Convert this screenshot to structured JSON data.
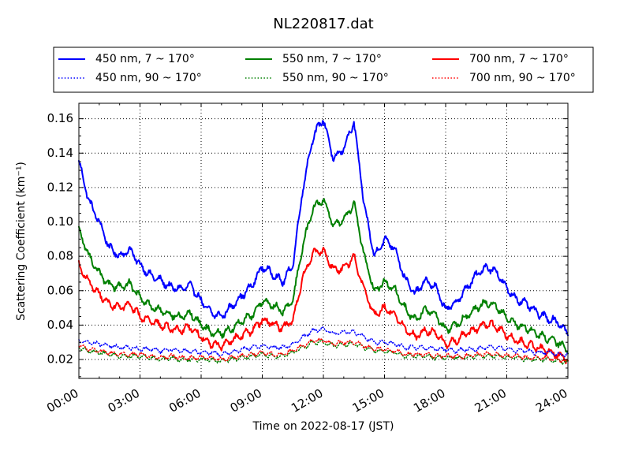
{
  "chart_data": {
    "type": "line",
    "title": "NL220817.dat",
    "xlabel": "Time on 2022-08-17 (JST)",
    "ylabel": "Scattering Coefficient (km⁻¹)",
    "x_unit": "hours",
    "xlim": [
      0,
      24
    ],
    "ylim": [
      0.009,
      0.169
    ],
    "grid": true,
    "legend_position": "top",
    "x_ticks": [
      0,
      3,
      6,
      9,
      12,
      15,
      18,
      21,
      24
    ],
    "x_tick_labels": [
      "00:00",
      "03:00",
      "06:00",
      "09:00",
      "12:00",
      "15:00",
      "18:00",
      "21:00",
      "24:00"
    ],
    "y_ticks": [
      0.02,
      0.04,
      0.06,
      0.08,
      0.1,
      0.12,
      0.14,
      0.16
    ],
    "y_tick_labels": [
      "0.02",
      "0.04",
      "0.06",
      "0.08",
      "0.10",
      "0.12",
      "0.14",
      "0.16"
    ],
    "x": [
      0,
      0.5,
      1,
      1.5,
      2,
      2.5,
      3,
      3.5,
      4,
      4.5,
      5,
      5.5,
      6,
      6.5,
      7,
      7.5,
      8,
      8.5,
      9,
      9.5,
      10,
      10.5,
      11,
      11.5,
      12,
      12.5,
      13,
      13.5,
      14,
      14.5,
      15,
      15.5,
      16,
      16.5,
      17,
      17.5,
      18,
      18.5,
      19,
      19.5,
      20,
      20.5,
      21,
      21.5,
      22,
      22.5,
      23,
      23.5,
      24
    ],
    "series": [
      {
        "name": "450 nm, 7 ~ 170°",
        "color": "#0000ff",
        "style": "solid",
        "values": [
          0.135,
          0.112,
          0.1,
          0.085,
          0.08,
          0.084,
          0.075,
          0.069,
          0.066,
          0.062,
          0.061,
          0.063,
          0.054,
          0.047,
          0.045,
          0.051,
          0.057,
          0.063,
          0.074,
          0.07,
          0.065,
          0.075,
          0.12,
          0.15,
          0.16,
          0.136,
          0.143,
          0.158,
          0.11,
          0.08,
          0.09,
          0.085,
          0.067,
          0.058,
          0.066,
          0.062,
          0.049,
          0.053,
          0.061,
          0.069,
          0.074,
          0.071,
          0.061,
          0.055,
          0.052,
          0.047,
          0.044,
          0.042,
          0.035
        ]
      },
      {
        "name": "550 nm, 7 ~ 170°",
        "color": "#008000",
        "style": "solid",
        "values": [
          0.095,
          0.08,
          0.07,
          0.063,
          0.062,
          0.064,
          0.056,
          0.051,
          0.049,
          0.046,
          0.045,
          0.047,
          0.04,
          0.036,
          0.035,
          0.038,
          0.042,
          0.046,
          0.054,
          0.052,
          0.048,
          0.054,
          0.087,
          0.108,
          0.113,
          0.098,
          0.101,
          0.111,
          0.08,
          0.06,
          0.065,
          0.061,
          0.05,
          0.043,
          0.049,
          0.046,
          0.037,
          0.04,
          0.045,
          0.05,
          0.053,
          0.051,
          0.044,
          0.04,
          0.038,
          0.035,
          0.032,
          0.03,
          0.025
        ]
      },
      {
        "name": "700 nm, 7 ~ 170°",
        "color": "#ff0000",
        "style": "solid",
        "values": [
          0.075,
          0.065,
          0.058,
          0.052,
          0.05,
          0.052,
          0.045,
          0.042,
          0.04,
          0.038,
          0.037,
          0.039,
          0.033,
          0.029,
          0.028,
          0.031,
          0.034,
          0.037,
          0.043,
          0.041,
          0.038,
          0.043,
          0.068,
          0.082,
          0.083,
          0.072,
          0.073,
          0.08,
          0.06,
          0.046,
          0.05,
          0.046,
          0.038,
          0.033,
          0.037,
          0.035,
          0.029,
          0.031,
          0.035,
          0.038,
          0.041,
          0.039,
          0.034,
          0.031,
          0.029,
          0.027,
          0.025,
          0.023,
          0.02
        ]
      },
      {
        "name": "450 nm, 90 ~ 170°",
        "color": "#0000ff",
        "style": "dotted",
        "values": [
          0.031,
          0.03,
          0.029,
          0.028,
          0.027,
          0.027,
          0.026,
          0.026,
          0.025,
          0.026,
          0.025,
          0.025,
          0.024,
          0.024,
          0.023,
          0.024,
          0.026,
          0.027,
          0.028,
          0.027,
          0.027,
          0.029,
          0.033,
          0.037,
          0.038,
          0.035,
          0.036,
          0.036,
          0.033,
          0.03,
          0.03,
          0.029,
          0.027,
          0.027,
          0.027,
          0.026,
          0.026,
          0.025,
          0.026,
          0.026,
          0.027,
          0.027,
          0.026,
          0.025,
          0.025,
          0.024,
          0.024,
          0.023,
          0.023
        ]
      },
      {
        "name": "550 nm, 90 ~ 170°",
        "color": "#008000",
        "style": "dotted",
        "values": [
          0.027,
          0.025,
          0.024,
          0.023,
          0.022,
          0.022,
          0.022,
          0.021,
          0.02,
          0.021,
          0.02,
          0.02,
          0.02,
          0.02,
          0.019,
          0.02,
          0.021,
          0.022,
          0.023,
          0.022,
          0.022,
          0.024,
          0.027,
          0.03,
          0.03,
          0.028,
          0.029,
          0.029,
          0.027,
          0.025,
          0.025,
          0.024,
          0.022,
          0.022,
          0.022,
          0.021,
          0.021,
          0.021,
          0.021,
          0.022,
          0.022,
          0.022,
          0.021,
          0.021,
          0.02,
          0.02,
          0.02,
          0.019,
          0.018
        ]
      },
      {
        "name": "700 nm, 90 ~ 170°",
        "color": "#ff0000",
        "style": "dotted",
        "values": [
          0.028,
          0.026,
          0.025,
          0.024,
          0.023,
          0.023,
          0.023,
          0.022,
          0.021,
          0.022,
          0.021,
          0.021,
          0.021,
          0.021,
          0.02,
          0.021,
          0.022,
          0.023,
          0.024,
          0.023,
          0.023,
          0.025,
          0.028,
          0.031,
          0.031,
          0.029,
          0.03,
          0.03,
          0.028,
          0.026,
          0.026,
          0.025,
          0.023,
          0.023,
          0.023,
          0.022,
          0.022,
          0.022,
          0.022,
          0.023,
          0.023,
          0.023,
          0.022,
          0.022,
          0.021,
          0.021,
          0.021,
          0.02,
          0.019
        ]
      }
    ],
    "legend_order": [
      0,
      3,
      1,
      4,
      2,
      5
    ]
  }
}
